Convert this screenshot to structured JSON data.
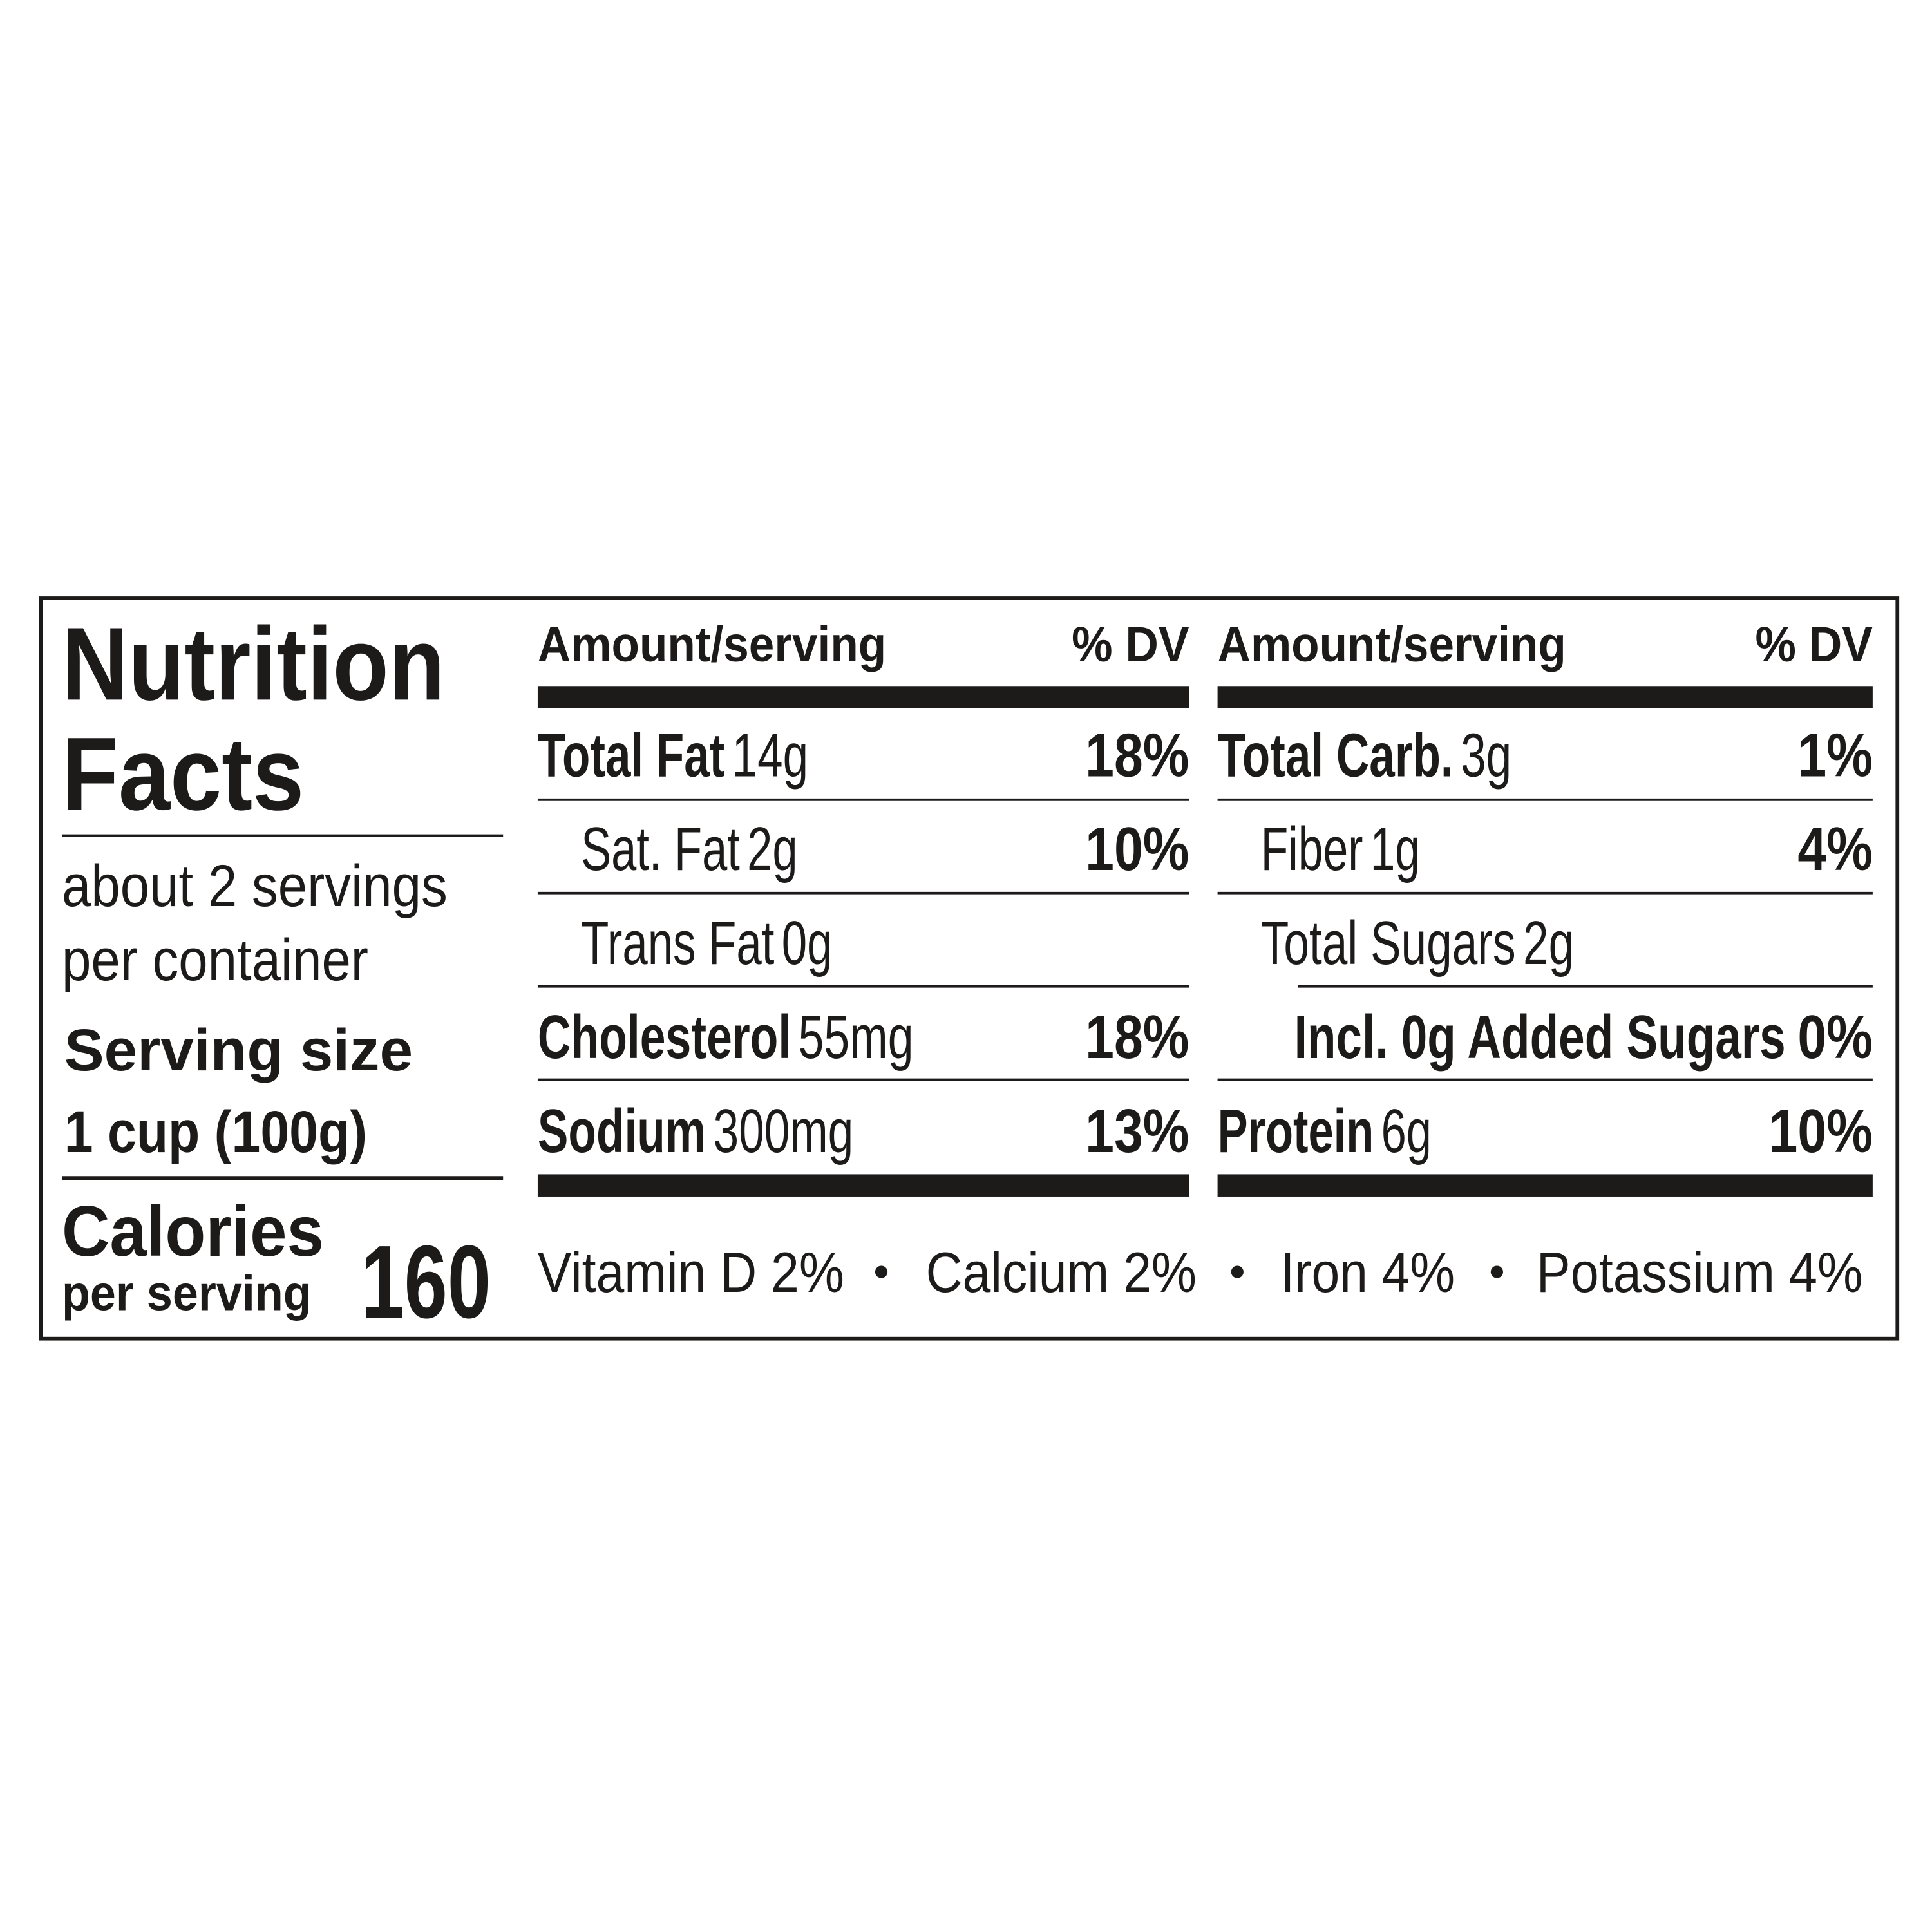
{
  "title": [
    "Nutrition",
    "Facts"
  ],
  "servings": [
    "about 2 servings",
    "per container"
  ],
  "serving_size": {
    "label": "Serving size",
    "value": "1 cup (100g)"
  },
  "calories": {
    "label": "Calories",
    "sublabel": "per serving",
    "value": 160
  },
  "columns": [
    {
      "header": {
        "amount": "Amount/serving",
        "dv": "% DV"
      },
      "rows": [
        {
          "name": "Total Fat",
          "amount": "14g",
          "dv": "18%"
        },
        {
          "name": "Sat. Fat",
          "amount": "2g",
          "dv": "10%"
        },
        {
          "name": "Trans Fat",
          "amount": "0g"
        },
        {
          "name": "Cholesterol",
          "amount": "55mg",
          "dv": "18%"
        },
        {
          "name": "Sodium",
          "amount": "300mg",
          "dv": "13%"
        }
      ]
    },
    {
      "header": {
        "amount": "Amount/serving",
        "dv": "% DV"
      },
      "rows": [
        {
          "name": "Total Carb.",
          "amount": "3g",
          "dv": "1%"
        },
        {
          "name": "Fiber",
          "amount": "1g",
          "dv": "4%"
        },
        {
          "name": "Total Sugars",
          "amount": "2g"
        },
        {
          "name": "Incl. 0g Added Sugars",
          "amount": "",
          "dv": "0%"
        },
        {
          "name": "Protein",
          "amount": "6g",
          "dv": "10%"
        }
      ]
    }
  ],
  "vitamins": [
    "Vitamin D 2%",
    "Calcium 2%",
    "Iron 4%",
    "Potassium 4%"
  ]
}
